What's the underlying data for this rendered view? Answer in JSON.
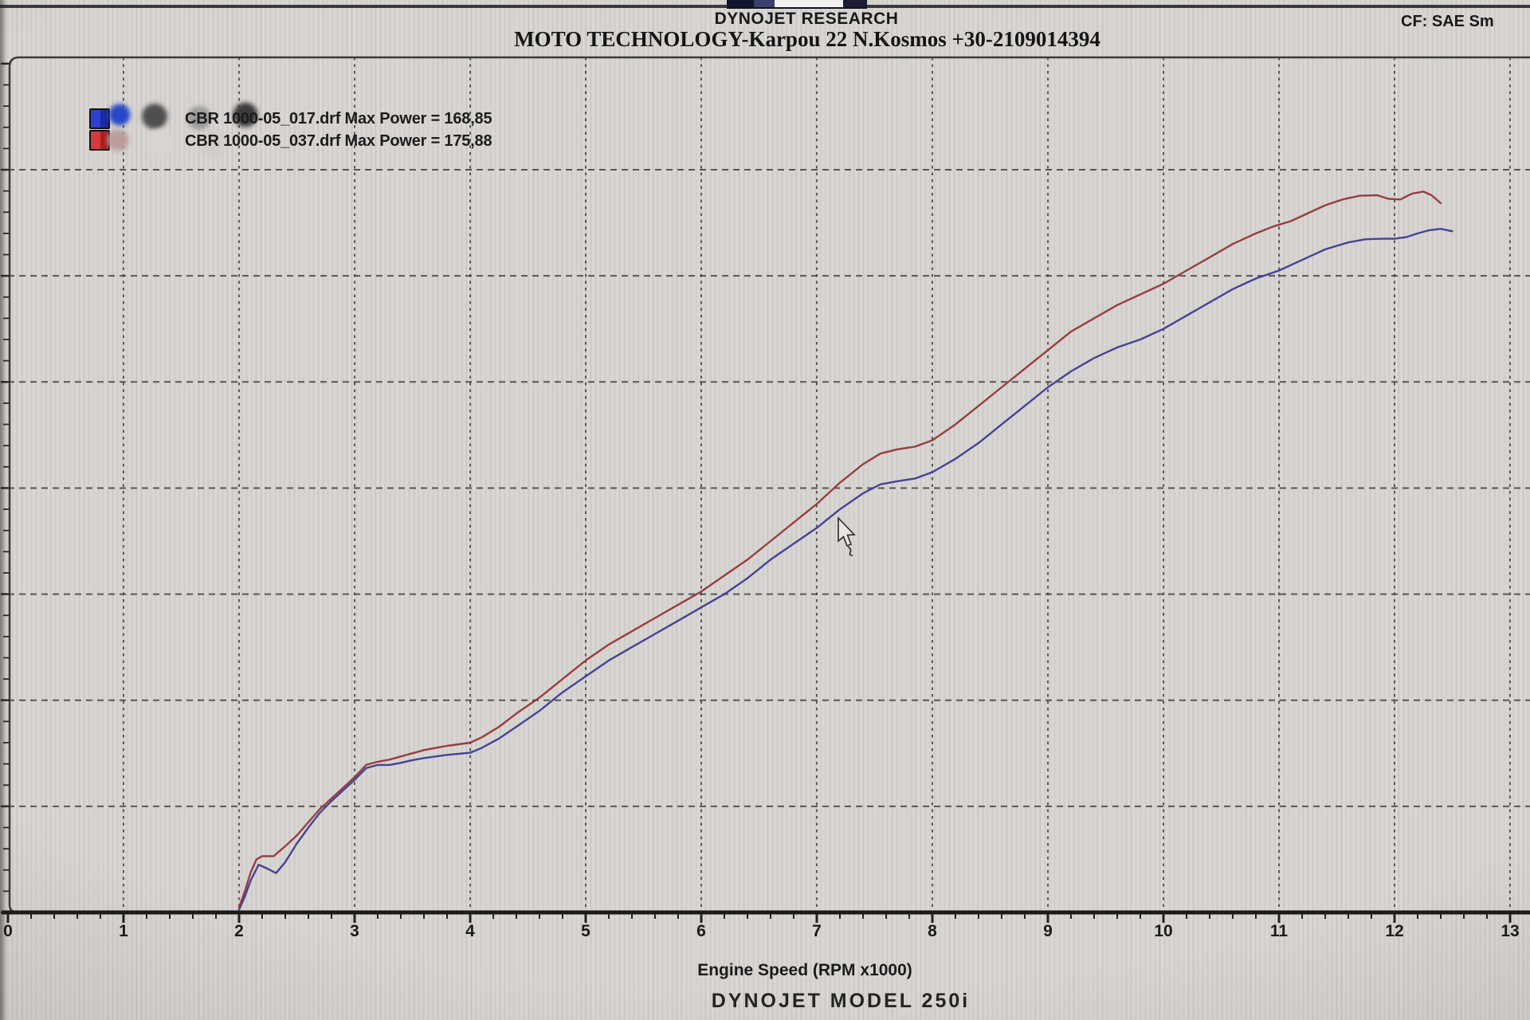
{
  "header": {
    "title": "DYNOJET RESEARCH",
    "subtitle": "MOTO TECHNOLOGY-Karpou 22 N.Kosmos +30-2109014394",
    "cf_label": "CF: SAE  Sm"
  },
  "legend": {
    "entries": [
      {
        "file": "CBR 1000-05_017.drf",
        "max_power": "168,85",
        "label": "CBR 1000-05_017.drf Max Power = 168,85",
        "color_key": "blue"
      },
      {
        "file": "CBR 1000-05_037.drf",
        "max_power": "175,88",
        "label": "CBR 1000-05_037.drf Max Power = 175,88",
        "color_key": "red"
      }
    ]
  },
  "footer": {
    "xlabel": "Engine Speed (RPM x1000)",
    "model": "DYNOJET  MODEL  250i"
  },
  "colors": {
    "red_curve": "#94383a",
    "blue_curve": "#3d3e93",
    "grid": "#3c3c3c",
    "axis": "#1a1a1a",
    "legend_blue": "#2c40d2",
    "legend_red": "#d8393a",
    "background": "#d6d3d0"
  },
  "chart_data": {
    "type": "line",
    "title": "",
    "xlabel": "Engine Speed (RPM x1000)",
    "ylabel": "",
    "x_ticks": [
      "0",
      "1",
      "2",
      "3",
      "4",
      "5",
      "6",
      "7",
      "8",
      "9",
      "10",
      "11",
      "12",
      "13"
    ],
    "xlim": [
      0,
      13.2
    ],
    "ylim_power": [
      40,
      200
    ],
    "y_gridlines_power": [
      60,
      80,
      100,
      120,
      140,
      160,
      180
    ],
    "grid": "dashed",
    "legend_position": "top-left",
    "series": [
      {
        "name": "CBR 1000-05_017.drf",
        "max_power_hp": 168.85,
        "color_key": "blue_curve",
        "points": [
          [
            2.0,
            40.5
          ],
          [
            2.05,
            43
          ],
          [
            2.1,
            46
          ],
          [
            2.17,
            49
          ],
          [
            2.25,
            48.2
          ],
          [
            2.32,
            47.4
          ],
          [
            2.4,
            49.5
          ],
          [
            2.5,
            53
          ],
          [
            2.6,
            56
          ],
          [
            2.7,
            58.8
          ],
          [
            2.8,
            61
          ],
          [
            2.9,
            63
          ],
          [
            3.0,
            65
          ],
          [
            3.1,
            67.2
          ],
          [
            3.2,
            67.8
          ],
          [
            3.3,
            67.8
          ],
          [
            3.4,
            68.2
          ],
          [
            3.5,
            68.7
          ],
          [
            3.6,
            69.1
          ],
          [
            3.7,
            69.4
          ],
          [
            3.8,
            69.7
          ],
          [
            3.9,
            69.9
          ],
          [
            4.0,
            70.1
          ],
          [
            4.1,
            71
          ],
          [
            4.25,
            72.8
          ],
          [
            4.4,
            75
          ],
          [
            4.6,
            78
          ],
          [
            4.8,
            81.5
          ],
          [
            5.0,
            84.5
          ],
          [
            5.2,
            87.5
          ],
          [
            5.4,
            90
          ],
          [
            5.6,
            92.5
          ],
          [
            5.8,
            95
          ],
          [
            6.0,
            97.5
          ],
          [
            6.2,
            100
          ],
          [
            6.4,
            103
          ],
          [
            6.6,
            106.5
          ],
          [
            6.8,
            109.5
          ],
          [
            7.0,
            112.5
          ],
          [
            7.2,
            116
          ],
          [
            7.4,
            119
          ],
          [
            7.55,
            120.7
          ],
          [
            7.7,
            121.3
          ],
          [
            7.85,
            121.8
          ],
          [
            8.0,
            123
          ],
          [
            8.2,
            125.5
          ],
          [
            8.4,
            128.5
          ],
          [
            8.6,
            132
          ],
          [
            8.8,
            135.5
          ],
          [
            9.0,
            139
          ],
          [
            9.2,
            142
          ],
          [
            9.4,
            144.5
          ],
          [
            9.6,
            146.5
          ],
          [
            9.8,
            148
          ],
          [
            10.0,
            150
          ],
          [
            10.2,
            152.5
          ],
          [
            10.4,
            155
          ],
          [
            10.6,
            157.5
          ],
          [
            10.8,
            159.5
          ],
          [
            11.0,
            161
          ],
          [
            11.2,
            163
          ],
          [
            11.4,
            165
          ],
          [
            11.6,
            166.3
          ],
          [
            11.75,
            166.9
          ],
          [
            11.9,
            167
          ],
          [
            12.0,
            167
          ],
          [
            12.1,
            167.3
          ],
          [
            12.2,
            168
          ],
          [
            12.3,
            168.6
          ],
          [
            12.4,
            168.85
          ],
          [
            12.5,
            168.4
          ]
        ]
      },
      {
        "name": "CBR 1000-05_037.drf",
        "max_power_hp": 175.88,
        "color_key": "red_curve",
        "points": [
          [
            2.0,
            41
          ],
          [
            2.05,
            44
          ],
          [
            2.1,
            47.5
          ],
          [
            2.15,
            50
          ],
          [
            2.2,
            50.6
          ],
          [
            2.3,
            50.6
          ],
          [
            2.4,
            52.5
          ],
          [
            2.5,
            54.5
          ],
          [
            2.6,
            57
          ],
          [
            2.7,
            59.5
          ],
          [
            2.8,
            61.5
          ],
          [
            2.9,
            63.5
          ],
          [
            3.0,
            65.5
          ],
          [
            3.1,
            67.8
          ],
          [
            3.2,
            68.4
          ],
          [
            3.3,
            68.8
          ],
          [
            3.4,
            69.4
          ],
          [
            3.5,
            70
          ],
          [
            3.6,
            70.6
          ],
          [
            3.7,
            71
          ],
          [
            3.8,
            71.4
          ],
          [
            3.9,
            71.7
          ],
          [
            4.0,
            72
          ],
          [
            4.1,
            73
          ],
          [
            4.25,
            75
          ],
          [
            4.4,
            77.5
          ],
          [
            4.6,
            80.5
          ],
          [
            4.8,
            84
          ],
          [
            5.0,
            87.5
          ],
          [
            5.2,
            90.5
          ],
          [
            5.4,
            93
          ],
          [
            5.6,
            95.5
          ],
          [
            5.8,
            98
          ],
          [
            6.0,
            100.5
          ],
          [
            6.2,
            103.5
          ],
          [
            6.4,
            106.5
          ],
          [
            6.6,
            110
          ],
          [
            6.8,
            113.5
          ],
          [
            7.0,
            117
          ],
          [
            7.2,
            121
          ],
          [
            7.4,
            124.5
          ],
          [
            7.55,
            126.5
          ],
          [
            7.7,
            127.3
          ],
          [
            7.85,
            127.8
          ],
          [
            8.0,
            129
          ],
          [
            8.2,
            132
          ],
          [
            8.4,
            135.5
          ],
          [
            8.6,
            139
          ],
          [
            8.8,
            142.5
          ],
          [
            9.0,
            146
          ],
          [
            9.2,
            149.5
          ],
          [
            9.4,
            152
          ],
          [
            9.6,
            154.5
          ],
          [
            9.8,
            156.5
          ],
          [
            10.0,
            158.5
          ],
          [
            10.2,
            161
          ],
          [
            10.4,
            163.5
          ],
          [
            10.6,
            166
          ],
          [
            10.8,
            168
          ],
          [
            10.95,
            169.3
          ],
          [
            11.1,
            170.3
          ],
          [
            11.25,
            171.8
          ],
          [
            11.4,
            173.3
          ],
          [
            11.55,
            174.4
          ],
          [
            11.7,
            175.1
          ],
          [
            11.85,
            175.2
          ],
          [
            11.95,
            174.5
          ],
          [
            12.05,
            174.4
          ],
          [
            12.15,
            175.5
          ],
          [
            12.25,
            175.88
          ],
          [
            12.32,
            175.2
          ],
          [
            12.4,
            173.7
          ]
        ]
      }
    ]
  }
}
